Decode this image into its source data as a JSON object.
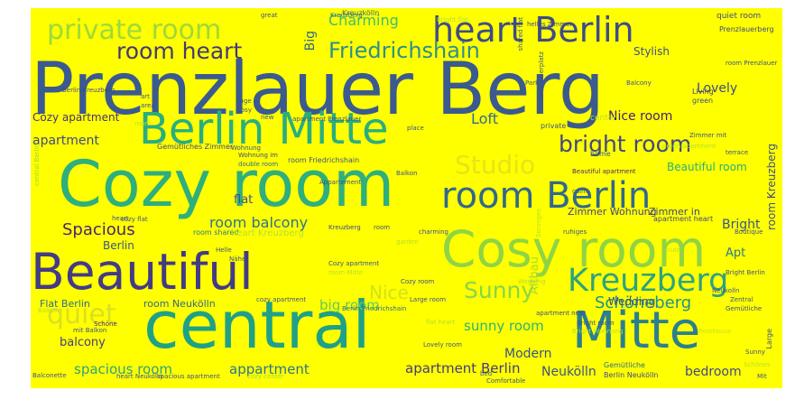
{
  "background_color": "#ffff00",
  "words": [
    {
      "text": "Prenzlauer Berg",
      "color": "#3b5a8f"
    },
    {
      "text": "Cozy room",
      "color": "#2eaf7d"
    },
    {
      "text": "central",
      "color": "#1fa187"
    },
    {
      "text": "Cosy room",
      "color": "#8fd444"
    },
    {
      "text": "Beautiful",
      "color": "#433b86"
    },
    {
      "text": "Berlin Mitte",
      "color": "#29ae80"
    },
    {
      "text": "Mitte",
      "color": "#2c7f8e"
    },
    {
      "text": "room Berlin",
      "color": "#31688e"
    },
    {
      "text": "heart Berlin",
      "color": "#3e4b89"
    },
    {
      "text": "Kreuzberg",
      "color": "#2da37f"
    },
    {
      "text": "private room",
      "color": "#9ed93a"
    },
    {
      "text": "quiet",
      "color": "#d9e022"
    },
    {
      "text": "bright room",
      "color": "#3f4889"
    },
    {
      "text": "room heart",
      "color": "#44387a"
    },
    {
      "text": "Friedrichshain",
      "color": "#2f8e8c"
    },
    {
      "text": "Sunny",
      "color": "#88d548"
    },
    {
      "text": "Studio",
      "color": "#e6e419"
    },
    {
      "text": "Spacious",
      "color": "#482475"
    },
    {
      "text": "Loft",
      "color": "#2e6f8e"
    },
    {
      "text": "room balcony",
      "color": "#2c738e"
    },
    {
      "text": "Schöneberg",
      "color": "#21918c"
    },
    {
      "text": "Lovely",
      "color": "#3e4c8a"
    },
    {
      "text": "Charming",
      "color": "#3fbc73"
    },
    {
      "text": "Nice room",
      "color": "#482071"
    },
    {
      "text": "Beautiful room",
      "color": "#28ae80"
    },
    {
      "text": "room Kreuzberg",
      "color": "#3d4e8a"
    },
    {
      "text": "Bright",
      "color": "#39558c"
    },
    {
      "text": "Apt",
      "color": "#2a798e"
    },
    {
      "text": "apartment Berlin",
      "color": "#443a83"
    },
    {
      "text": "spacious room",
      "color": "#2ea37c"
    },
    {
      "text": "appartment",
      "color": "#2a768e"
    },
    {
      "text": "sunny room",
      "color": "#2db27d"
    },
    {
      "text": "big room",
      "color": "#60ca60"
    },
    {
      "text": "Modern",
      "color": "#3b528b"
    },
    {
      "text": "Neukölln",
      "color": "#3b528b"
    },
    {
      "text": "bedroom",
      "color": "#3e4a89"
    },
    {
      "text": "Wedding",
      "color": "#3b518b"
    },
    {
      "text": "Altbau",
      "color": "#a8db34"
    },
    {
      "text": "apartment",
      "color": "#3e4989"
    },
    {
      "text": "Cozy apartment",
      "color": "#46327e"
    },
    {
      "text": "flat",
      "color": "#3a538b"
    },
    {
      "text": "Berlin",
      "color": "#3a548c"
    },
    {
      "text": "room Neukölln",
      "color": "#31688e"
    },
    {
      "text": "Flat Berlin",
      "color": "#2e6e8e"
    },
    {
      "text": "balcony",
      "color": "#433e85"
    },
    {
      "text": "Big",
      "color": "#31688e"
    },
    {
      "text": "Nice",
      "color": "#d2e21b"
    },
    {
      "text": "Stylish",
      "color": "#3c508b"
    },
    {
      "text": "Zimmer Wohnung",
      "color": "#404588"
    },
    {
      "text": "Zimmer in",
      "color": "#3f4788"
    },
    {
      "text": "Gemütliches Zimmer",
      "color": "#3e4a89"
    },
    {
      "text": "room Friedrichshain",
      "color": "#3b528b"
    },
    {
      "text": "room shared",
      "color": "#2a788e"
    },
    {
      "text": "heart Kreuzberg",
      "color": "#b5de2b"
    },
    {
      "text": "apartment heart",
      "color": "#3f4788"
    },
    {
      "text": "quiet room",
      "color": "#3e4c8a"
    },
    {
      "text": "Prenzlauerberg",
      "color": "#3f4788"
    },
    {
      "text": "Kreuzkölln",
      "color": "#31688e"
    },
    {
      "text": "private",
      "color": "#3a548c"
    },
    {
      "text": "center",
      "color": "#b8de29"
    },
    {
      "text": "Living",
      "color": "#424086"
    },
    {
      "text": "green",
      "color": "#3b528b"
    },
    {
      "text": "home",
      "color": "#38588c"
    },
    {
      "text": "Gemütliche",
      "color": "#2f6c8e"
    },
    {
      "text": "Berlin Neukölln",
      "color": "#3e4a89"
    },
    {
      "text": "Large room",
      "color": "#3b528b"
    },
    {
      "text": "Berlin Friedrichshain",
      "color": "#2f6c8e"
    },
    {
      "text": "Lovely room",
      "color": "#39558c"
    },
    {
      "text": "Comfortable",
      "color": "#3b528b"
    },
    {
      "text": "apartment near",
      "color": "#3e4a89"
    },
    {
      "text": "Schöne",
      "color": "#482475"
    },
    {
      "text": "mit Balkon",
      "color": "#3b528b"
    },
    {
      "text": "heart Neukölln",
      "color": "#3b528b"
    },
    {
      "text": "spacious apartment",
      "color": "#3b528b"
    },
    {
      "text": "cozy center",
      "color": "#a0da39"
    },
    {
      "text": "Wohnung im",
      "color": "#3e4a89"
    },
    {
      "text": "double room",
      "color": "#2f6c8e"
    },
    {
      "text": "Beautiful apartment",
      "color": "#482878"
    },
    {
      "text": "Kreuzberg",
      "color": "#31688e"
    },
    {
      "text": "Kreuzberg",
      "color": "#3e4a89"
    },
    {
      "text": "apartment Prenzlauer",
      "color": "#3b528b"
    },
    {
      "text": "cozy flat",
      "color": "#3b528b"
    },
    {
      "text": "Berlin Kreuzberg",
      "color": "#3e4a89"
    },
    {
      "text": "Alexanderplatz",
      "color": "#3b528b"
    },
    {
      "text": "Park",
      "color": "#3b528b"
    },
    {
      "text": "shared flat",
      "color": "#3b528b"
    },
    {
      "text": "room Prenzlauer",
      "color": "#3b528b"
    },
    {
      "text": "helles Zimmer",
      "color": "#3e4a89"
    },
    {
      "text": "place",
      "color": "#3b528b"
    },
    {
      "text": "cute",
      "color": "#b5de2b"
    },
    {
      "text": "terrace",
      "color": "#3b528b"
    },
    {
      "text": "room",
      "color": "#3b528b"
    },
    {
      "text": "Large",
      "color": "#3b528b"
    },
    {
      "text": "Penthouse",
      "color": "#c8e020"
    },
    {
      "text": "Wohnung",
      "color": "#3b528b"
    },
    {
      "text": "Bright Wohnung",
      "color": "#b5de2b"
    },
    {
      "text": "Bright room",
      "color": "#3b528b"
    },
    {
      "text": "bed",
      "color": "#3b528b"
    },
    {
      "text": "central Berlin",
      "color": "#9fda3a"
    },
    {
      "text": "green apartment",
      "color": "#b5de2b"
    },
    {
      "text": "Zimmer mit",
      "color": "#3b528b"
    },
    {
      "text": "heart",
      "color": "#3b528b"
    },
    {
      "text": "flat heart",
      "color": "#b5de2b"
    },
    {
      "text": "huge",
      "color": "#3b528b"
    },
    {
      "text": "Nähe",
      "color": "#3b528b"
    },
    {
      "text": "Helle",
      "color": "#3b528b"
    },
    {
      "text": "garden",
      "color": "#b5de2b"
    },
    {
      "text": "Cosy",
      "color": "#3b528b"
    },
    {
      "text": "art",
      "color": "#3b528b"
    },
    {
      "text": "area",
      "color": "#3b528b"
    },
    {
      "text": "new",
      "color": "#3b528b"
    },
    {
      "text": "great",
      "color": "#3b528b"
    },
    {
      "text": "Balkon",
      "color": "#3b528b"
    },
    {
      "text": "Sonniges",
      "color": "#b5de2b"
    },
    {
      "text": "Balcony",
      "color": "#3b528b"
    },
    {
      "text": "Neukolln",
      "color": "#3b528b"
    },
    {
      "text": "Boutique",
      "color": "#3b528b"
    },
    {
      "text": "Bright Berlin",
      "color": "#3b528b"
    },
    {
      "text": "charming",
      "color": "#3b528b"
    },
    {
      "text": "Bright flat",
      "color": "#b5de2b"
    },
    {
      "text": "Gemütliche",
      "color": "#3b528b"
    },
    {
      "text": "Zentral",
      "color": "#3b528b"
    },
    {
      "text": "Wedding",
      "color": "#b5de2b"
    },
    {
      "text": "Cozy room",
      "color": "#3b528b"
    },
    {
      "text": "ruhiges",
      "color": "#3b528b"
    },
    {
      "text": "calm",
      "color": "#3b528b"
    },
    {
      "text": "Balkon",
      "color": "#b5de2b"
    },
    {
      "text": "room",
      "color": "#b5de2b"
    },
    {
      "text": "Cozy apartment",
      "color": "#3b528b"
    },
    {
      "text": "room Mitte",
      "color": "#b5de2b"
    },
    {
      "text": "cozy apartment",
      "color": "#3b528b"
    },
    {
      "text": "Appartement",
      "color": "#3b528b"
    },
    {
      "text": "Balconette",
      "color": "#3b528b"
    },
    {
      "text": "Mit",
      "color": "#3b528b"
    },
    {
      "text": "Schönes",
      "color": "#b5de2b"
    },
    {
      "text": "Sunny",
      "color": "#3b528b"
    }
  ]
}
